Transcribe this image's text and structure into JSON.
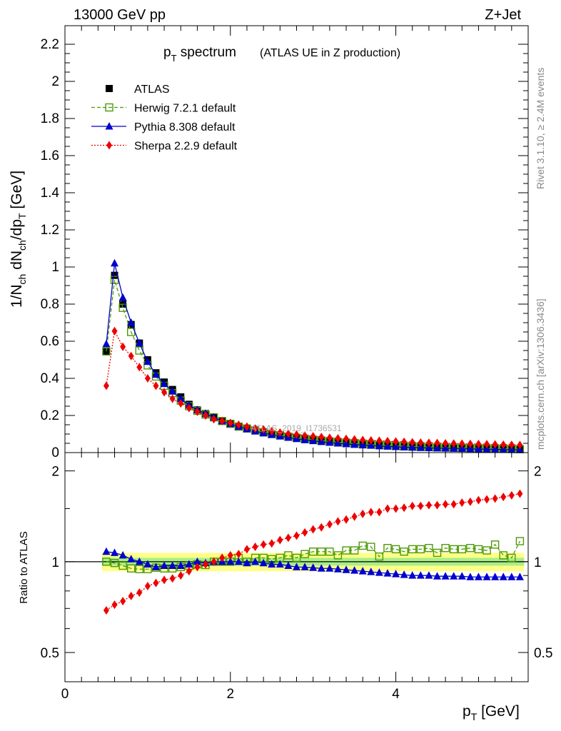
{
  "header": {
    "left": "13000 GeV pp",
    "right": "Z+Jet"
  },
  "side_labels": {
    "rivet": "Rivet 3.1.10, ≥ 2.4M events",
    "mcplots": "mcplots.cern.ch [arXiv:1306.3436]"
  },
  "title": {
    "main": "p",
    "main_sub": "T",
    "main_rest": " spectrum",
    "small": "(ATLAS UE in Z production)"
  },
  "watermark": "ATLAS_2019_I1736531",
  "y_axis_label": "1/N_ch dN_ch/dp_T [GeV]",
  "ratio_axis_label": "Ratio to ATLAS",
  "x_axis_label": "p_T [GeV]",
  "legend": [
    {
      "label": "ATLAS",
      "color": "#000000",
      "marker": "square-filled",
      "line": "none"
    },
    {
      "label": "Herwig 7.2.1 default",
      "color": "#4e9a06",
      "marker": "square-open",
      "line": "dashed"
    },
    {
      "label": "Pythia 8.308 default",
      "color": "#0000cc",
      "marker": "triangle",
      "line": "solid"
    },
    {
      "label": "Sherpa 2.2.9 default",
      "color": "#ee0000",
      "marker": "diamond",
      "line": "dotted"
    }
  ],
  "chart_data": {
    "type": "scatter",
    "x": [
      0.5,
      0.6,
      0.7,
      0.8,
      0.9,
      1.0,
      1.1,
      1.2,
      1.3,
      1.4,
      1.5,
      1.6,
      1.7,
      1.8,
      1.9,
      2.0,
      2.1,
      2.2,
      2.3,
      2.4,
      2.5,
      2.6,
      2.7,
      2.8,
      2.9,
      3.0,
      3.1,
      3.2,
      3.3,
      3.4,
      3.5,
      3.6,
      3.7,
      3.8,
      3.9,
      4.0,
      4.1,
      4.2,
      4.3,
      4.4,
      4.5,
      4.6,
      4.7,
      4.8,
      4.9,
      5.0,
      5.1,
      5.2,
      5.3,
      5.4,
      5.5
    ],
    "main": {
      "xlim": [
        0,
        5.6
      ],
      "ylim": [
        0,
        2.3
      ],
      "yticks": [
        0,
        0.2,
        0.4,
        0.6,
        0.8,
        1,
        1.2,
        1.4,
        1.6,
        1.8,
        2,
        2.2
      ],
      "ytick_labels": [
        "0",
        "0.2",
        "0.4",
        "0.6",
        "0.8",
        "1",
        "1.2",
        "1.4",
        "1.6",
        "1.8",
        "2",
        "2.2"
      ],
      "series": [
        {
          "name": "ATLAS",
          "values": [
            0.545,
            0.955,
            0.8,
            0.69,
            0.59,
            0.5,
            0.43,
            0.38,
            0.34,
            0.3,
            0.26,
            0.23,
            0.21,
            0.19,
            0.17,
            0.155,
            0.14,
            0.128,
            0.117,
            0.107,
            0.098,
            0.09,
            0.083,
            0.077,
            0.071,
            0.066,
            0.061,
            0.057,
            0.053,
            0.05,
            0.046,
            0.043,
            0.041,
            0.038,
            0.036,
            0.034,
            0.032,
            0.03,
            0.029,
            0.027,
            0.026,
            0.025,
            0.024,
            0.023,
            0.022,
            0.021,
            0.02,
            0.019,
            0.018,
            0.0175,
            0.017
          ]
        },
        {
          "name": "Herwig 7.2.1 default",
          "values": [
            0.545,
            0.93,
            0.78,
            0.65,
            0.55,
            0.47,
            0.41,
            0.36,
            0.32,
            0.28,
            0.25,
            0.225,
            0.205,
            0.19,
            0.17,
            0.155,
            0.14,
            0.13,
            0.12,
            0.11,
            0.1,
            0.093,
            0.086,
            0.08,
            0.075,
            0.07,
            0.065,
            0.06,
            0.056,
            0.053,
            0.05,
            0.047,
            0.044,
            0.041,
            0.039,
            0.037,
            0.035,
            0.033,
            0.031,
            0.03,
            0.028,
            0.027,
            0.026,
            0.025,
            0.024,
            0.023,
            0.022,
            0.021,
            0.02,
            0.019,
            0.0185
          ]
        },
        {
          "name": "Pythia 8.308 default",
          "values": [
            0.585,
            1.02,
            0.835,
            0.7,
            0.59,
            0.49,
            0.42,
            0.37,
            0.33,
            0.29,
            0.255,
            0.23,
            0.21,
            0.19,
            0.17,
            0.155,
            0.14,
            0.127,
            0.115,
            0.105,
            0.096,
            0.088,
            0.081,
            0.074,
            0.068,
            0.063,
            0.058,
            0.054,
            0.05,
            0.046,
            0.043,
            0.04,
            0.038,
            0.035,
            0.033,
            0.031,
            0.029,
            0.028,
            0.026,
            0.025,
            0.024,
            0.023,
            0.022,
            0.021,
            0.02,
            0.019,
            0.018,
            0.017,
            0.016,
            0.0155,
            0.015
          ]
        },
        {
          "name": "Sherpa 2.2.9 default",
          "values": [
            0.36,
            0.655,
            0.57,
            0.52,
            0.46,
            0.4,
            0.36,
            0.325,
            0.29,
            0.265,
            0.24,
            0.22,
            0.2,
            0.18,
            0.17,
            0.16,
            0.15,
            0.14,
            0.13,
            0.125,
            0.115,
            0.108,
            0.102,
            0.097,
            0.092,
            0.088,
            0.084,
            0.08,
            0.077,
            0.074,
            0.071,
            0.068,
            0.066,
            0.064,
            0.062,
            0.06,
            0.058,
            0.056,
            0.054,
            0.053,
            0.052,
            0.05,
            0.049,
            0.048,
            0.047,
            0.046,
            0.045,
            0.044,
            0.043,
            0.042,
            0.041
          ]
        }
      ]
    },
    "ratio": {
      "ylim": [
        0.4,
        2.3
      ],
      "yticks": [
        0.5,
        1,
        2
      ],
      "ytick_labels": [
        "0.5",
        "1",
        "2"
      ],
      "band_inner": 0.03,
      "band_outer": 0.07,
      "series": [
        {
          "name": "Herwig 7.2.1 default",
          "values": [
            1.0,
            0.99,
            0.97,
            0.95,
            0.945,
            0.945,
            0.955,
            0.95,
            0.95,
            0.96,
            0.97,
            0.98,
            0.975,
            1.0,
            1.0,
            1.0,
            1.03,
            1.0,
            1.03,
            1.03,
            1.02,
            1.03,
            1.05,
            1.03,
            1.06,
            1.08,
            1.08,
            1.08,
            1.05,
            1.09,
            1.09,
            1.13,
            1.12,
            1.04,
            1.11,
            1.1,
            1.08,
            1.1,
            1.1,
            1.11,
            1.07,
            1.11,
            1.1,
            1.1,
            1.11,
            1.1,
            1.09,
            1.14,
            1.05,
            1.03,
            1.17
          ]
        },
        {
          "name": "Pythia 8.308 default",
          "values": [
            1.08,
            1.07,
            1.05,
            1.02,
            1.0,
            0.98,
            0.96,
            0.97,
            0.97,
            0.97,
            0.98,
            1.0,
            0.99,
            1.0,
            1.0,
            1.0,
            1.0,
            0.99,
            1.0,
            0.99,
            0.98,
            0.98,
            0.97,
            0.96,
            0.96,
            0.955,
            0.95,
            0.95,
            0.945,
            0.94,
            0.935,
            0.93,
            0.925,
            0.92,
            0.915,
            0.91,
            0.905,
            0.9,
            0.9,
            0.9,
            0.895,
            0.895,
            0.895,
            0.895,
            0.89,
            0.89,
            0.89,
            0.89,
            0.89,
            0.89,
            0.89
          ]
        },
        {
          "name": "Sherpa 2.2.9 default",
          "values": [
            0.69,
            0.72,
            0.74,
            0.77,
            0.79,
            0.83,
            0.85,
            0.87,
            0.88,
            0.9,
            0.93,
            0.96,
            0.98,
            1.0,
            1.03,
            1.05,
            1.06,
            1.1,
            1.12,
            1.14,
            1.15,
            1.18,
            1.2,
            1.22,
            1.25,
            1.28,
            1.3,
            1.33,
            1.36,
            1.38,
            1.41,
            1.44,
            1.46,
            1.46,
            1.5,
            1.5,
            1.51,
            1.53,
            1.53,
            1.54,
            1.54,
            1.55,
            1.55,
            1.57,
            1.58,
            1.6,
            1.61,
            1.62,
            1.64,
            1.66,
            1.68
          ]
        }
      ]
    },
    "xticks": [
      0,
      2,
      4
    ],
    "xtick_labels": [
      "0",
      "2",
      "4"
    ]
  }
}
